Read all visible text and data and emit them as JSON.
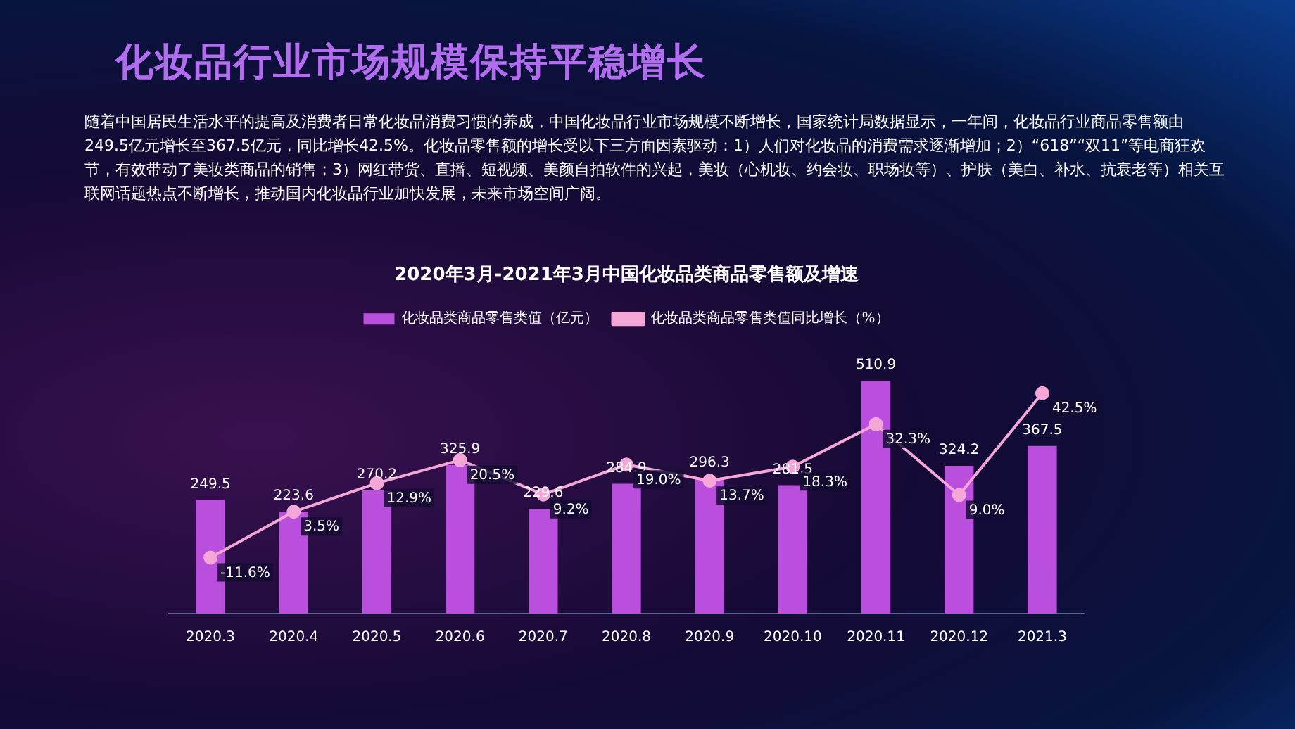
{
  "chart_data": {
    "type": "bar",
    "title": "2020年3月-2021年3月中国化妆品类商品零售额及增速",
    "subtitle": "化妆品行业市场规模保持平稳增长",
    "annotations": [
      "随着中国居民生活水平的提高及消费者日常化妆品消费习惯的养成，中国化妆品行业市场规模不断增长，国家统计局数据显示，一年间，化妆品行业商品零售额由249.5亿元增长至367.5亿元，同比增长42.5%。化妆品零售额的增长受以下三方面因素驱动：1）人们对化妆品的消费需求逐渐增加；2）“618”“双11”等电商狂欢节，有效带动了美妆类商品的销售；3）网红带货、直播、短视频、美颜自拍软件的兴起，美妆（心机妆、约会妆、职场妆等）、护肤（美白、补水、抗衰老等）相关互联网话题热点不断增长，推动国内化妆品行业加快发展，未来市场空间广阔。"
    ],
    "categories": [
      "2020.3",
      "2020.4",
      "2020.5",
      "2020.6",
      "2020.7",
      "2020.8",
      "2020.9",
      "2020.10",
      "2020.11",
      "2020.12",
      "2021.3"
    ],
    "series": [
      {
        "name": "化妆品类商品零售类值（亿元）",
        "color": "#b94fdc",
        "values": [
          249.5,
          223.6,
          270.2,
          325.9,
          229.6,
          284.9,
          296.3,
          281.5,
          510.9,
          324.2,
          367.5
        ],
        "value_labels": [
          "249.5",
          "223.6",
          "270.2",
          "325.9",
          "229.6",
          "284.9",
          "296.3",
          "281.5",
          "510.9",
          "324.2",
          "367.5"
        ]
      },
      {
        "name": "化妆品类商品零售类值同比增长（%）",
        "type": "line",
        "axis": "y2",
        "color": "#f4a6d7",
        "values": [
          -11.6,
          3.5,
          12.9,
          20.5,
          9.2,
          19.0,
          13.7,
          18.3,
          32.3,
          9.0,
          42.5
        ],
        "value_labels": [
          "-11.6%",
          "3.5%",
          "12.9%",
          "20.5%",
          "9.2%",
          "19.0%",
          "13.7%",
          "18.3%",
          "32.3%",
          "9.0%",
          "42.5%"
        ]
      }
    ],
    "tick_labels": "x",
    "grid": false,
    "legend": "top",
    "marker": "circle",
    "line_style": "solid"
  }
}
